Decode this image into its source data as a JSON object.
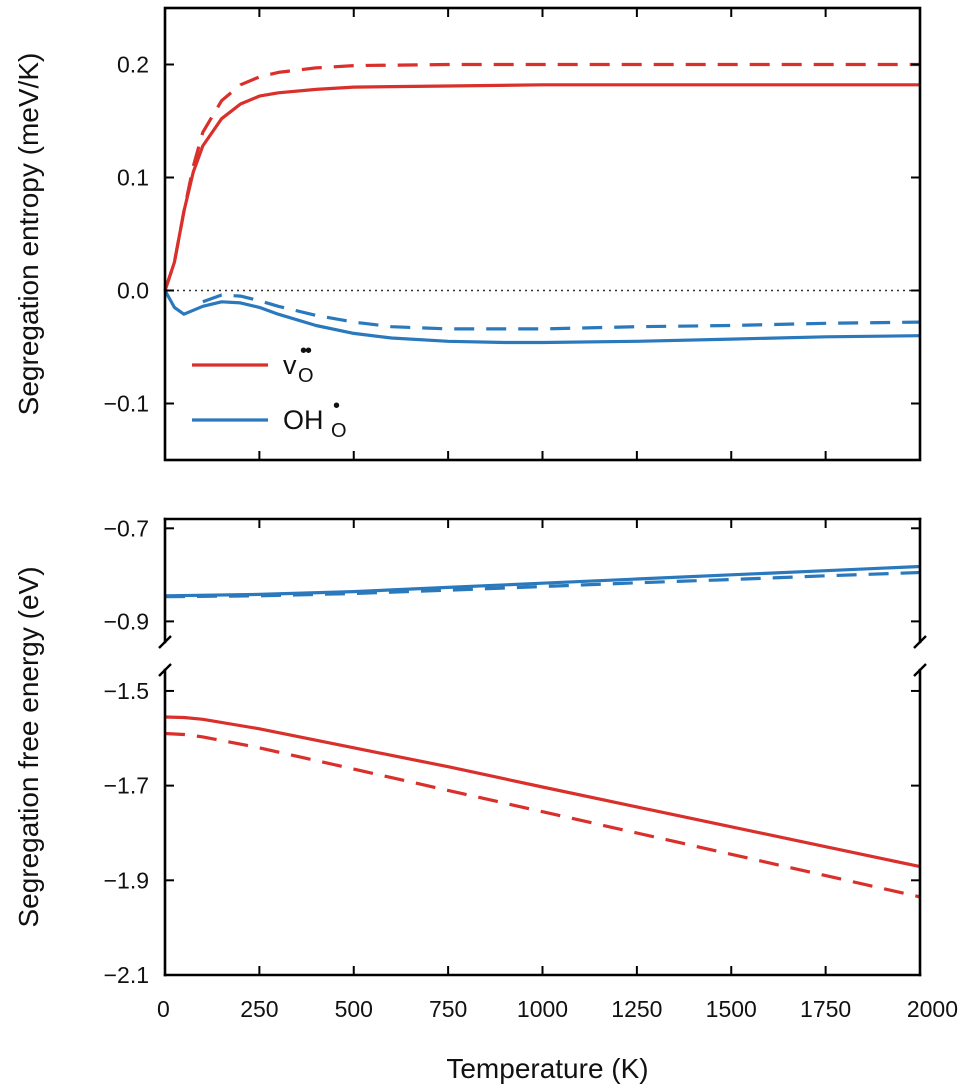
{
  "colors": {
    "red": "#d9302c",
    "blue": "#2a79bd"
  },
  "chart_data": [
    {
      "type": "line",
      "xlabel": "Temperature (K)",
      "ylabel": "Segregation entropy (meV/K)",
      "xlim": [
        0,
        2000
      ],
      "ylim": [
        -0.15,
        0.25
      ],
      "yticks": [
        0.2,
        0.1,
        0.0,
        -0.1
      ],
      "ytick_labels": [
        "0.2",
        "0.1",
        "0.0",
        "−0.1"
      ],
      "reference_line_y": 0.0,
      "legend": {
        "placement": "lower-left",
        "entries": [
          {
            "text": "v",
            "sub": "O",
            "sup": "••",
            "color": "red"
          },
          {
            "text": "OH",
            "sub": "O",
            "sup": "•",
            "color": "blue"
          }
        ]
      },
      "series": [
        {
          "color": "red",
          "style": "solid",
          "x": [
            0,
            25,
            50,
            75,
            100,
            150,
            200,
            250,
            300,
            400,
            500,
            750,
            1000,
            1500,
            2000
          ],
          "y": [
            0.0,
            0.025,
            0.07,
            0.105,
            0.128,
            0.152,
            0.165,
            0.172,
            0.175,
            0.178,
            0.18,
            0.181,
            0.182,
            0.182,
            0.182
          ]
        },
        {
          "color": "red",
          "style": "dashed",
          "x": [
            0,
            25,
            50,
            75,
            100,
            150,
            200,
            250,
            300,
            400,
            500,
            750,
            1000,
            1500,
            2000
          ],
          "y": [
            0.0,
            0.025,
            0.07,
            0.11,
            0.14,
            0.168,
            0.182,
            0.189,
            0.193,
            0.197,
            0.199,
            0.2,
            0.2,
            0.2,
            0.2
          ]
        },
        {
          "color": "blue",
          "style": "solid",
          "x": [
            0,
            25,
            50,
            100,
            150,
            200,
            250,
            300,
            400,
            500,
            600,
            750,
            900,
            1000,
            1250,
            1500,
            1750,
            2000
          ],
          "y": [
            0.0,
            -0.015,
            -0.021,
            -0.014,
            -0.01,
            -0.011,
            -0.015,
            -0.021,
            -0.031,
            -0.038,
            -0.042,
            -0.045,
            -0.046,
            -0.046,
            -0.045,
            -0.043,
            -0.041,
            -0.04
          ]
        },
        {
          "color": "blue",
          "style": "dashed",
          "x": [
            100,
            150,
            200,
            250,
            300,
            400,
            500,
            600,
            750,
            900,
            1000,
            1250,
            1500,
            1750,
            2000
          ],
          "y": [
            -0.01,
            -0.004,
            -0.005,
            -0.009,
            -0.014,
            -0.022,
            -0.028,
            -0.032,
            -0.034,
            -0.034,
            -0.034,
            -0.032,
            -0.031,
            -0.029,
            -0.028
          ]
        }
      ]
    },
    {
      "type": "line",
      "xlabel": "Temperature (K)",
      "ylabel": "Segregation free energy (eV)",
      "xlim": [
        0,
        2000
      ],
      "broken_axis": true,
      "xticks": [
        0,
        250,
        500,
        750,
        1000,
        1250,
        1500,
        1750,
        2000
      ],
      "ylim_upper": [
        -0.94,
        -0.68
      ],
      "ylim_lower": [
        -2.1,
        -1.46
      ],
      "yticks_upper": [
        -0.7,
        -0.9
      ],
      "ytick_labels_upper": [
        "−0.7",
        "−0.9"
      ],
      "yticks_lower": [
        -1.5,
        -1.7,
        -1.9,
        -2.1
      ],
      "ytick_labels_lower": [
        "−1.5",
        "−1.7",
        "−1.9",
        "−2.1"
      ],
      "series": [
        {
          "color": "blue",
          "style": "solid",
          "segment": "upper",
          "x": [
            0,
            250,
            500,
            750,
            1000,
            1250,
            1500,
            1750,
            2000
          ],
          "y": [
            -0.845,
            -0.842,
            -0.836,
            -0.827,
            -0.818,
            -0.809,
            -0.8,
            -0.791,
            -0.782
          ]
        },
        {
          "color": "blue",
          "style": "dashed",
          "segment": "upper",
          "x": [
            0,
            250,
            500,
            750,
            1000,
            1250,
            1500,
            1750,
            2000
          ],
          "y": [
            -0.847,
            -0.845,
            -0.84,
            -0.833,
            -0.825,
            -0.817,
            -0.81,
            -0.802,
            -0.795
          ]
        },
        {
          "color": "red",
          "style": "solid",
          "segment": "lower",
          "x": [
            0,
            50,
            100,
            250,
            500,
            750,
            1000,
            1250,
            1500,
            1750,
            2000
          ],
          "y": [
            -1.555,
            -1.556,
            -1.56,
            -1.58,
            -1.62,
            -1.66,
            -1.703,
            -1.745,
            -1.787,
            -1.829,
            -1.871
          ]
        },
        {
          "color": "red",
          "style": "dashed",
          "segment": "lower",
          "x": [
            0,
            50,
            100,
            250,
            500,
            750,
            1000,
            1250,
            1500,
            1750,
            2000
          ],
          "y": [
            -1.59,
            -1.592,
            -1.597,
            -1.62,
            -1.665,
            -1.71,
            -1.755,
            -1.8,
            -1.845,
            -1.89,
            -1.935
          ]
        }
      ]
    }
  ]
}
